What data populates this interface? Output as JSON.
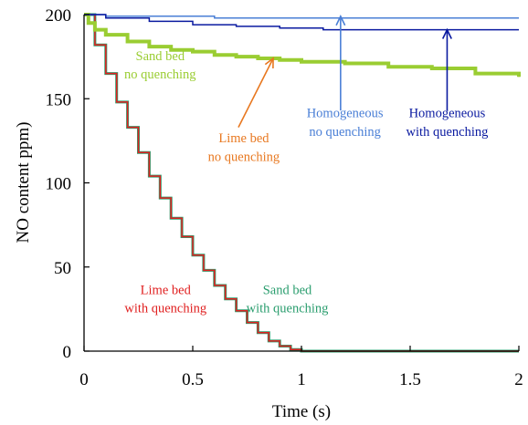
{
  "chart_data": {
    "type": "line",
    "title": "",
    "xlabel": "Time (s)",
    "ylabel": "NO content ppm)",
    "xlim": [
      0,
      2
    ],
    "ylim": [
      0,
      200
    ],
    "xticks": [
      0,
      0.5,
      1,
      1.5,
      2
    ],
    "xtick_labels": [
      "0",
      "0.5",
      "1",
      "1.5",
      "2"
    ],
    "yticks": [
      0,
      50,
      100,
      150,
      200
    ],
    "ytick_labels": [
      "0",
      "50",
      "100",
      "150",
      "200"
    ],
    "grid": false,
    "legend": "none",
    "series": [
      {
        "color": "#2a9d6e",
        "stroke": 3,
        "x": [
          0,
          0.05,
          0.1,
          0.15,
          0.2,
          0.25,
          0.3,
          0.35,
          0.4,
          0.45,
          0.5,
          0.55,
          0.6,
          0.65,
          0.7,
          0.75,
          0.8,
          0.85,
          0.9,
          0.95,
          1.0,
          1.5,
          2.0
        ],
        "y": [
          200,
          182,
          165,
          148,
          133,
          118,
          104,
          91,
          79,
          68,
          57,
          48,
          39,
          31,
          24,
          17,
          11,
          6,
          3,
          1,
          0,
          0,
          0
        ]
      },
      {
        "color": "#e02020",
        "stroke": 1.5,
        "x": [
          0,
          0.05,
          0.1,
          0.15,
          0.2,
          0.25,
          0.3,
          0.35,
          0.4,
          0.45,
          0.5,
          0.55,
          0.6,
          0.65,
          0.7,
          0.75,
          0.8,
          0.85,
          0.9,
          0.95,
          1.0,
          1.5,
          2.0
        ],
        "y": [
          200,
          182,
          165,
          148,
          133,
          118,
          104,
          91,
          79,
          68,
          57,
          48,
          39,
          31,
          24,
          17,
          11,
          6,
          3,
          1,
          0,
          0,
          0
        ]
      },
      {
        "color": "#e87820",
        "stroke": 1.5,
        "x": [
          0,
          0.02,
          0.05,
          0.1,
          0.2,
          0.3,
          0.4,
          0.5,
          0.6,
          0.7,
          0.8,
          0.9,
          1.0,
          1.2,
          1.4,
          1.6,
          1.8,
          2.0
        ],
        "y": [
          200,
          195,
          191,
          188,
          184,
          181,
          179,
          178,
          176,
          175,
          174,
          173,
          172,
          171,
          169,
          168,
          165,
          163
        ]
      },
      {
        "color": "#9acd32",
        "stroke": 4,
        "x": [
          0,
          0.02,
          0.05,
          0.1,
          0.2,
          0.3,
          0.4,
          0.5,
          0.6,
          0.7,
          0.8,
          0.9,
          1.0,
          1.2,
          1.4,
          1.6,
          1.8,
          2.0
        ],
        "y": [
          200,
          195,
          191,
          188,
          184,
          181,
          179,
          178,
          176,
          175,
          174,
          173,
          172,
          171,
          169,
          168,
          165,
          163
        ]
      },
      {
        "color": "#4a7fd6",
        "stroke": 1.5,
        "x": [
          0,
          0.1,
          0.3,
          0.6,
          1.0,
          1.5,
          2.0
        ],
        "y": [
          200,
          199,
          199,
          198,
          198,
          198,
          198
        ]
      },
      {
        "color": "#0a1aa0",
        "stroke": 1.5,
        "x": [
          0,
          0.1,
          0.3,
          0.5,
          0.7,
          0.9,
          1.1,
          1.5,
          2.0
        ],
        "y": [
          200,
          198,
          196,
          194,
          193,
          192,
          191,
          191,
          191
        ]
      }
    ],
    "annotations": [
      {
        "id": "sand-nq",
        "lines": [
          "Sand bed",
          "no quenching"
        ],
        "color": "#9acd32",
        "x": 0.35,
        "y1": 173,
        "y2": 162
      },
      {
        "id": "lime-nq",
        "lines": [
          "Lime bed",
          "no quenching"
        ],
        "color": "#e87820",
        "x": 0.735,
        "y1": 124,
        "y2": 113
      },
      {
        "id": "homog-nq",
        "lines": [
          "Homogeneous",
          "no quenching"
        ],
        "color": "#4a7fd6",
        "x": 1.2,
        "y1": 139,
        "y2": 128
      },
      {
        "id": "homog-wq",
        "lines": [
          "Homogeneous",
          "with quenching"
        ],
        "color": "#0a1aa0",
        "x": 1.67,
        "y1": 139,
        "y2": 128
      },
      {
        "id": "lime-wq",
        "lines": [
          "Lime bed",
          "with quenching"
        ],
        "color": "#e02020",
        "x": 0.375,
        "y1": 34,
        "y2": 23
      },
      {
        "id": "sand-wq",
        "lines": [
          "Sand bed",
          "with quenching"
        ],
        "color": "#2a9d6e",
        "x": 0.935,
        "y1": 34,
        "y2": 23
      }
    ],
    "arrows": [
      {
        "id": "lime-nq-arrow",
        "color": "#e87820",
        "from": [
          0.71,
          133
        ],
        "to": [
          0.87,
          174
        ]
      },
      {
        "id": "homog-nq-arrow",
        "color": "#4a7fd6",
        "from": [
          1.18,
          143
        ],
        "to": [
          1.18,
          199
        ]
      },
      {
        "id": "homog-wq-arrow",
        "color": "#0a1aa0",
        "from": [
          1.67,
          143
        ],
        "to": [
          1.67,
          191
        ]
      }
    ]
  }
}
